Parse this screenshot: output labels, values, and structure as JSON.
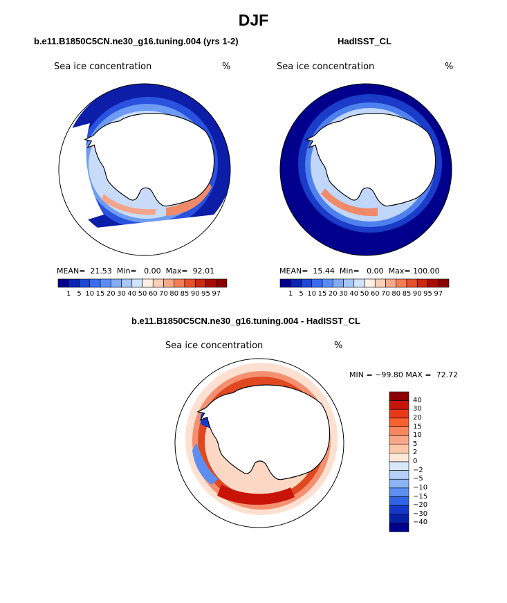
{
  "title": "DJF",
  "panels": {
    "model": {
      "title": "b.e11.B1850C5CN.ne30_g16.tuning.004 (yrs 1-2)",
      "variable": "Sea ice concentration",
      "units": "%",
      "mean_label": "MEAN=",
      "mean": "21.53",
      "min_label": "Min=",
      "min": "0.00",
      "max_label": "Max=",
      "max": "92.01"
    },
    "obs": {
      "title": "HadISST_CL",
      "variable": "Sea ice concentration",
      "units": "%",
      "mean_label": "MEAN=",
      "mean": "15.44",
      "min_label": "Min=",
      "min": "0.00",
      "max_label": "Max=",
      "max": "100.00"
    },
    "diff": {
      "title": "b.e11.B1850C5CN.ne30_g16.tuning.004 - HadISST_CL",
      "variable": "Sea ice concentration",
      "units": "%",
      "minmax": "MIN = −99.80 MAX =  72.72"
    }
  },
  "colorbar_abs": {
    "labels": [
      "1",
      "5",
      "10",
      "15",
      "20",
      "30",
      "40",
      "50",
      "60",
      "70",
      "80",
      "85",
      "90",
      "95",
      "97"
    ],
    "colors": [
      "#00008c",
      "#0a24b4",
      "#1e48d8",
      "#3a6cf0",
      "#5a8cf4",
      "#82acf8",
      "#a8c8fa",
      "#d0e4fc",
      "#fdf0e4",
      "#fcd0b8",
      "#f8a888",
      "#f47c58",
      "#e8502c",
      "#cc2810",
      "#aa0a04",
      "#8c0000"
    ]
  },
  "colorbar_diff": {
    "labels": [
      "40",
      "30",
      "20",
      "15",
      "10",
      "5",
      "2",
      "0",
      "−2",
      "−5",
      "−10",
      "−15",
      "−20",
      "−30",
      "−40"
    ],
    "colors": [
      "#8c0000",
      "#c81408",
      "#e83818",
      "#f86030",
      "#f88860",
      "#f8a888",
      "#fcc8a8",
      "#fde8d8",
      "#d8e8fa",
      "#b4d0f8",
      "#8cb4f4",
      "#5e8ef0",
      "#3064e4",
      "#1438c8",
      "#0820a8",
      "#00008c"
    ]
  }
}
